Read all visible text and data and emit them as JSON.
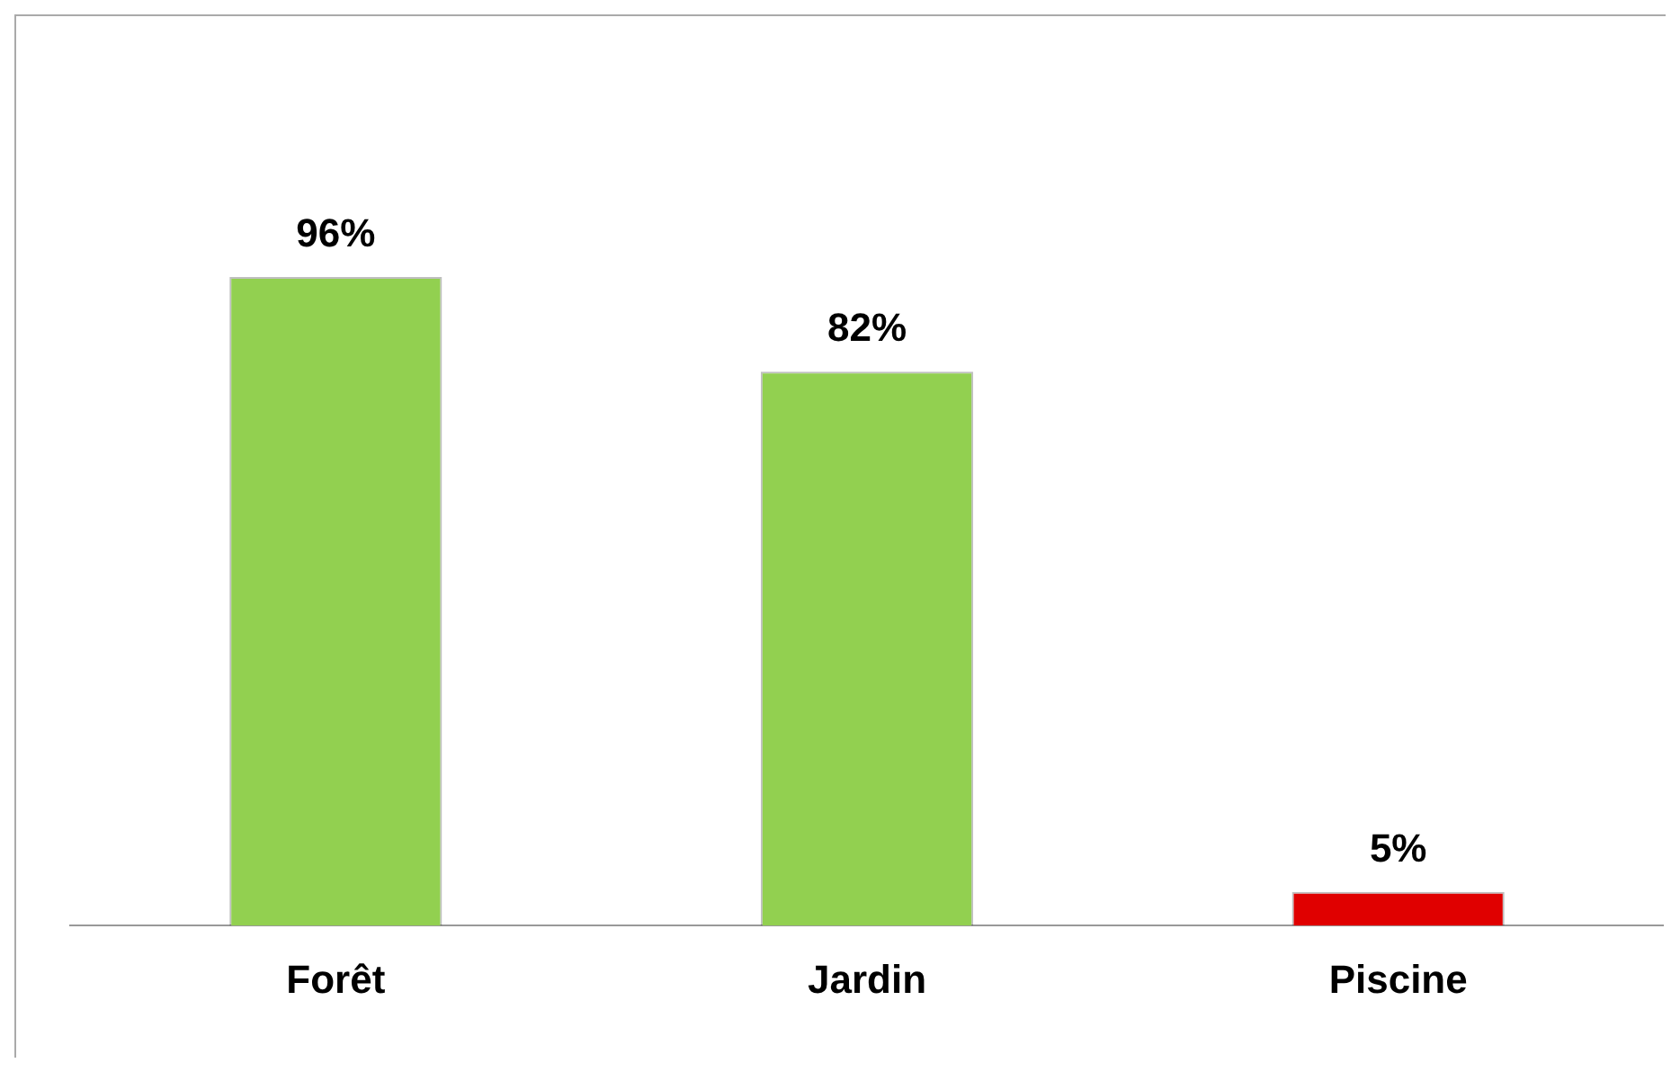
{
  "chart_data": {
    "type": "bar",
    "categories": [
      "Forêt",
      "Jardin",
      "Piscine"
    ],
    "values": [
      96,
      82,
      5
    ],
    "colors": [
      "#92d050",
      "#92d050",
      "#e00000"
    ],
    "value_labels": [
      "96%",
      "82%",
      "5%"
    ],
    "tick_labels": "x",
    "grid": false,
    "legend": false
  }
}
